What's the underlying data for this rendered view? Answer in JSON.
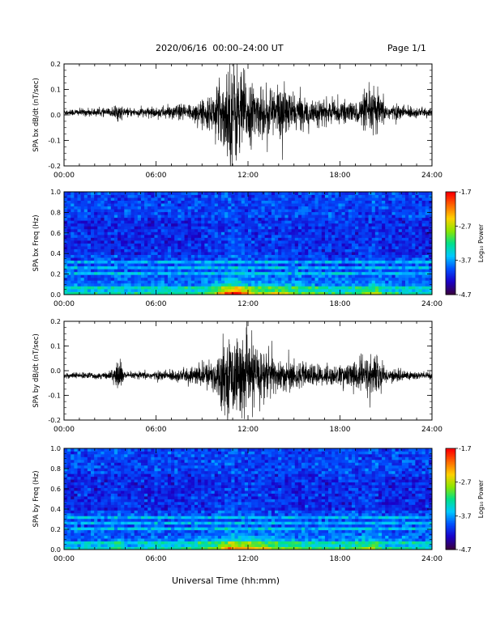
{
  "header": {
    "title": "2020/06/16  00:00–24:00 UT",
    "page": "Page 1/1"
  },
  "xlabel": "Universal Time (hh:mm)",
  "chart_data": [
    {
      "id": "bx-timeseries",
      "type": "line",
      "ylabel": "SPA bx dB/dt (nT/sec)",
      "xlim": [
        0,
        24
      ],
      "ylim": [
        -0.2,
        0.2
      ],
      "x_unit": "hours UT",
      "xticks": [
        "00:00",
        "06:00",
        "12:00",
        "18:00",
        "24:00"
      ],
      "yticks": [
        "-0.2",
        "-0.1",
        "0.0",
        "0.1",
        "0.2"
      ],
      "baseline": 0.01,
      "amplitude_envelope": [
        {
          "t": 0,
          "a": 0.012
        },
        {
          "t": 3.0,
          "a": 0.014
        },
        {
          "t": 3.5,
          "a": 0.03
        },
        {
          "t": 4.0,
          "a": 0.014
        },
        {
          "t": 6.0,
          "a": 0.018
        },
        {
          "t": 8.0,
          "a": 0.03
        },
        {
          "t": 9.5,
          "a": 0.05
        },
        {
          "t": 10.3,
          "a": 0.12
        },
        {
          "t": 11.0,
          "a": 0.2
        },
        {
          "t": 11.7,
          "a": 0.14
        },
        {
          "t": 12.5,
          "a": 0.08
        },
        {
          "t": 14.0,
          "a": 0.1
        },
        {
          "t": 15.0,
          "a": 0.06
        },
        {
          "t": 17.0,
          "a": 0.04
        },
        {
          "t": 19.0,
          "a": 0.035
        },
        {
          "t": 20.2,
          "a": 0.09
        },
        {
          "t": 21.0,
          "a": 0.03
        },
        {
          "t": 24.0,
          "a": 0.012
        }
      ]
    },
    {
      "id": "bx-spectrogram",
      "type": "heatmap",
      "ylabel": "SPA bx Freq (Hz)",
      "xlim": [
        0,
        24
      ],
      "ylim": [
        0.0,
        1.0
      ],
      "xticks": [
        "00:00",
        "06:00",
        "12:00",
        "18:00",
        "24:00"
      ],
      "yticks": [
        "0.0",
        "0.2",
        "0.4",
        "0.6",
        "0.8",
        "1.0"
      ],
      "colorbar": {
        "label": "Log₁₀ Power",
        "ticks": [
          "-1.7",
          "-2.7",
          "-3.7",
          "-4.7"
        ],
        "range": [
          -4.7,
          -1.7
        ]
      },
      "harmonic_lines_hz": [
        0.07,
        0.14,
        0.2,
        0.27,
        0.33
      ]
    },
    {
      "id": "by-timeseries",
      "type": "line",
      "ylabel": "SPA by dB/dt (nT/sec)",
      "xlim": [
        0,
        24
      ],
      "ylim": [
        -0.2,
        0.2
      ],
      "x_unit": "hours UT",
      "xticks": [
        "00:00",
        "06:00",
        "12:00",
        "18:00",
        "24:00"
      ],
      "yticks": [
        "-0.2",
        "-0.1",
        "0.0",
        "0.1",
        "0.2"
      ],
      "baseline": -0.02,
      "amplitude_envelope": [
        {
          "t": 0,
          "a": 0.01
        },
        {
          "t": 3.0,
          "a": 0.012
        },
        {
          "t": 3.5,
          "a": 0.07
        },
        {
          "t": 4.0,
          "a": 0.012
        },
        {
          "t": 6.0,
          "a": 0.015
        },
        {
          "t": 8.0,
          "a": 0.025
        },
        {
          "t": 9.5,
          "a": 0.05
        },
        {
          "t": 10.3,
          "a": 0.1
        },
        {
          "t": 11.0,
          "a": 0.14
        },
        {
          "t": 12.0,
          "a": 0.12
        },
        {
          "t": 13.0,
          "a": 0.1
        },
        {
          "t": 14.0,
          "a": 0.06
        },
        {
          "t": 16.0,
          "a": 0.04
        },
        {
          "t": 18.0,
          "a": 0.035
        },
        {
          "t": 20.2,
          "a": 0.08
        },
        {
          "t": 21.0,
          "a": 0.025
        },
        {
          "t": 24.0,
          "a": 0.012
        }
      ]
    },
    {
      "id": "by-spectrogram",
      "type": "heatmap",
      "ylabel": "SPA by Freq (Hz)",
      "xlim": [
        0,
        24
      ],
      "ylim": [
        0.0,
        1.0
      ],
      "xticks": [
        "00:00",
        "06:00",
        "12:00",
        "18:00",
        "24:00"
      ],
      "yticks": [
        "0.0",
        "0.2",
        "0.4",
        "0.6",
        "0.8",
        "1.0"
      ],
      "colorbar": {
        "label": "Log₁₀ Power",
        "ticks": [
          "-1.7",
          "-2.7",
          "-3.7",
          "-4.7"
        ],
        "range": [
          -4.7,
          -1.7
        ]
      },
      "harmonic_lines_hz": [
        0.07,
        0.14,
        0.2,
        0.27,
        0.33
      ]
    }
  ],
  "colors": {
    "trace": "#000000",
    "colormap": [
      "#3a0040",
      "#1a00c8",
      "#0050ff",
      "#00c8ff",
      "#00e08a",
      "#8ce600",
      "#ffd000",
      "#ff6a00",
      "#ff0000"
    ]
  }
}
